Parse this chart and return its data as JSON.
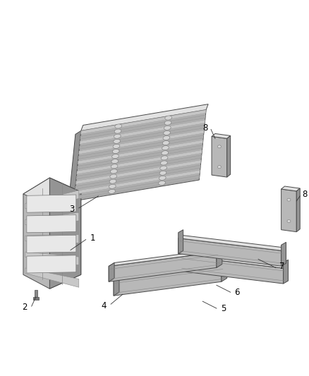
{
  "bg_color": "#ffffff",
  "edge_color": "#4a4a4a",
  "face_light": "#d0d0d0",
  "face_mid": "#b8b8b8",
  "face_dark": "#949494",
  "face_top": "#e2e2e2",
  "label_fs": 8.5,
  "lw": 0.7
}
